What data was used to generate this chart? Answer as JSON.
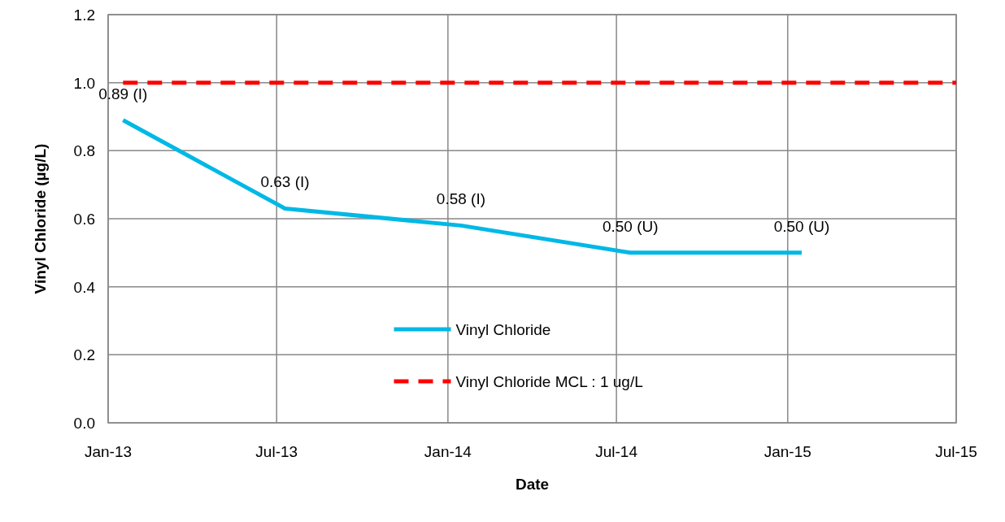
{
  "chart_data": {
    "type": "line",
    "xlabel": "Date",
    "ylabel": "Vinyl Chloride (µg/L)",
    "xlim": [
      "2013-01-01",
      "2015-07-01"
    ],
    "xticks": [
      {
        "value": "2013-01-01",
        "label": "Jan-13"
      },
      {
        "value": "2013-07-01",
        "label": "Jul-13"
      },
      {
        "value": "2014-01-01",
        "label": "Jan-14"
      },
      {
        "value": "2014-07-01",
        "label": "Jul-14"
      },
      {
        "value": "2015-01-01",
        "label": "Jan-15"
      },
      {
        "value": "2015-07-01",
        "label": "Jul-15"
      }
    ],
    "ylim": [
      0,
      1.2
    ],
    "yticks": [
      {
        "value": 0,
        "label": "0.0"
      },
      {
        "value": 0.2,
        "label": "0.2"
      },
      {
        "value": 0.4,
        "label": "0.4"
      },
      {
        "value": 0.6,
        "label": "0.6"
      },
      {
        "value": 0.8,
        "label": "0.8"
      },
      {
        "value": 1,
        "label": "1.0"
      },
      {
        "value": 1.2,
        "label": "1.2"
      }
    ],
    "grid": true,
    "legend": "bottom",
    "marker": "none",
    "series": [
      {
        "name": "Vinyl Chloride",
        "color": "#00b8e6",
        "line_style": "solid",
        "x": [
          "2013-01-17",
          "2013-07-10",
          "2014-01-15",
          "2014-07-16",
          "2015-01-16"
        ],
        "values": [
          0.89,
          0.63,
          0.58,
          0.5,
          0.5
        ],
        "value_labels": [
          "0.89 (I)",
          "0.63 (I)",
          "0.58 (I)",
          "0.50 (U)",
          "0.50 (U)"
        ]
      },
      {
        "name": "Vinyl Chloride MCL : 1 ug/L",
        "color": "#ff0000",
        "line_style": "dashed",
        "x": [
          "2013-01-17",
          "2015-07-01"
        ],
        "values": [
          1,
          1
        ]
      }
    ]
  }
}
